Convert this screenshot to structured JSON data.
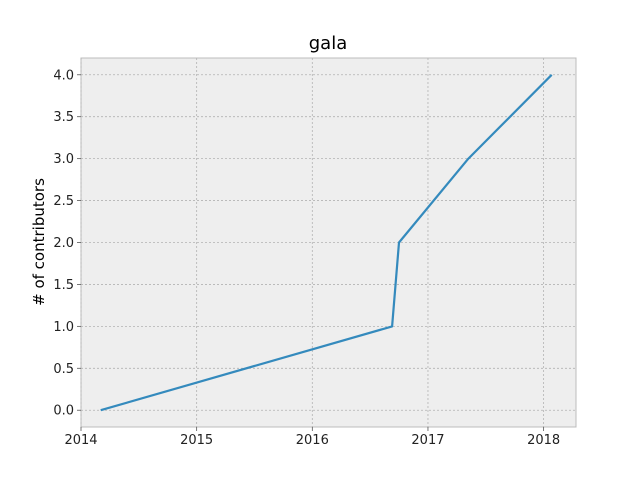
{
  "chart_data": {
    "type": "line",
    "title": "gala",
    "xlabel": "",
    "ylabel": "# of contributors",
    "x_tick_labels": [
      "2014",
      "2015",
      "2016",
      "2017",
      "2018"
    ],
    "y_tick_labels": [
      "0.0",
      "0.5",
      "1.0",
      "1.5",
      "2.0",
      "2.5",
      "3.0",
      "3.5",
      "4.0"
    ],
    "x_ticks": [
      2014,
      2015,
      2016,
      2017,
      2018
    ],
    "y_ticks": [
      0,
      0.5,
      1,
      1.5,
      2,
      2.5,
      3,
      3.5,
      4
    ],
    "xlim": [
      2014,
      2018.28
    ],
    "ylim": [
      -0.2,
      4.2
    ],
    "grid": true,
    "series": [
      {
        "name": "",
        "color": "#348ABD",
        "x": [
          2014.17,
          2016.69,
          2016.75,
          2017.35,
          2018.07
        ],
        "y": [
          0,
          1,
          2,
          3,
          4
        ]
      }
    ]
  }
}
